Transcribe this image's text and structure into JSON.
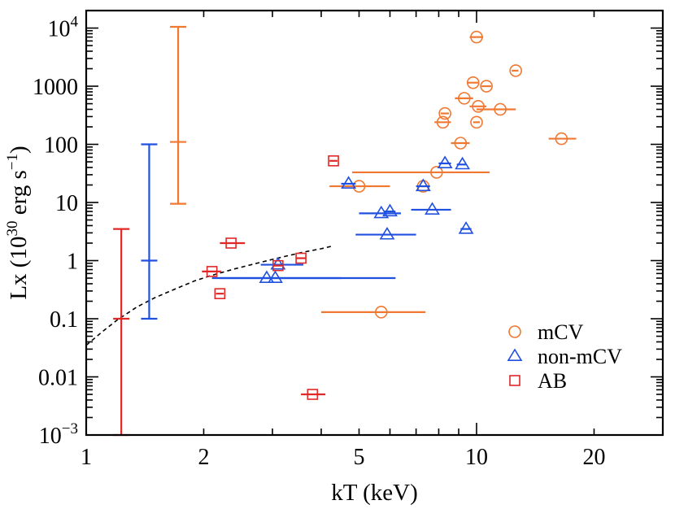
{
  "chart_data": {
    "type": "scatter",
    "title": "",
    "xlabel": "kT (keV)",
    "ylabel_parts": [
      "Lx (10",
      "30",
      " erg s",
      "−1",
      ")"
    ],
    "xscale": "log",
    "yscale": "log",
    "xlim": [
      1,
      30
    ],
    "ylim": [
      0.001,
      20000
    ],
    "x_ticks": [
      {
        "value": 1,
        "label": "1"
      },
      {
        "value": 2,
        "label": "2"
      },
      {
        "value": 5,
        "label": "5"
      },
      {
        "value": 10,
        "label": "10"
      },
      {
        "value": 20,
        "label": "20"
      }
    ],
    "y_ticks": [
      {
        "value": 0.001,
        "base": "10",
        "exp": "−3"
      },
      {
        "value": 0.01,
        "label": "0.01"
      },
      {
        "value": 0.1,
        "label": "0.1"
      },
      {
        "value": 1,
        "label": "1"
      },
      {
        "value": 10,
        "label": "10"
      },
      {
        "value": 100,
        "label": "100"
      },
      {
        "value": 1000,
        "label": "1000"
      },
      {
        "value": 10000,
        "base": "10",
        "exp": "4"
      }
    ],
    "colors": {
      "mCV": "#f07830",
      "non-mCV": "#2050e0",
      "AB": "#e02828"
    },
    "legend": {
      "position": "lower-right",
      "entries": [
        {
          "name": "mCV",
          "marker": "circle"
        },
        {
          "name": "non-mCV",
          "marker": "triangle"
        },
        {
          "name": "AB",
          "marker": "square"
        }
      ]
    },
    "series": [
      {
        "name": "mCV",
        "marker": "circle",
        "points": [
          {
            "x": 10.0,
            "y": 7000,
            "xerr": [
              9.6,
              10.4
            ]
          },
          {
            "x": 12.6,
            "y": 1850,
            "xerr": [
              12.3,
              12.8
            ]
          },
          {
            "x": 9.8,
            "y": 1150,
            "xerr": [
              9.5,
              10.1
            ]
          },
          {
            "x": 10.6,
            "y": 1000,
            "xerr": [
              10.3,
              10.9
            ]
          },
          {
            "x": 9.3,
            "y": 620,
            "xerr": [
              8.8,
              9.8
            ]
          },
          {
            "x": 10.1,
            "y": 450,
            "xerr": [
              9.6,
              10.6
            ]
          },
          {
            "x": 11.5,
            "y": 400,
            "xerr": [
              10.0,
              12.6
            ]
          },
          {
            "x": 8.3,
            "y": 340,
            "xerr": [
              8.1,
              8.5
            ]
          },
          {
            "x": 8.2,
            "y": 240,
            "xerr": [
              7.8,
              8.6
            ]
          },
          {
            "x": 10.0,
            "y": 240,
            "xerr": [
              9.8,
              10.2
            ]
          },
          {
            "x": 16.5,
            "y": 125,
            "xerr": [
              15.3,
              18.0
            ]
          },
          {
            "x": 9.1,
            "y": 105,
            "xerr": [
              8.6,
              9.6
            ]
          },
          {
            "x": 7.9,
            "y": 33,
            "xerr": [
              4.8,
              10.8
            ]
          },
          {
            "x": 5.0,
            "y": 19,
            "xerr": [
              4.2,
              6.0
            ]
          },
          {
            "x": 7.3,
            "y": 19,
            "xerr": [
              7.1,
              7.5
            ]
          },
          {
            "x": 5.7,
            "y": 0.13,
            "xerr": [
              4.0,
              7.4
            ]
          }
        ],
        "yerr_bar": {
          "x": 1.72,
          "y": 110,
          "low": 9.5,
          "high": 10500
        }
      },
      {
        "name": "non-mCV",
        "marker": "triangle",
        "points": [
          {
            "x": 8.3,
            "y": 47,
            "xerr": [
              8.0,
              8.6
            ]
          },
          {
            "x": 9.2,
            "y": 45,
            "xerr": [
              8.9,
              9.4
            ]
          },
          {
            "x": 4.7,
            "y": 21,
            "xerr": [
              4.5,
              4.9
            ]
          },
          {
            "x": 7.3,
            "y": 19,
            "xerr": [
              7.0,
              7.6
            ]
          },
          {
            "x": 7.7,
            "y": 7.5,
            "xerr": [
              6.8,
              8.6
            ]
          },
          {
            "x": 6.0,
            "y": 7,
            "xerr": [
              5.8,
              6.2
            ]
          },
          {
            "x": 5.7,
            "y": 6.5,
            "xerr": [
              5.0,
              6.4
            ]
          },
          {
            "x": 5.9,
            "y": 2.8,
            "xerr": [
              4.9,
              7.0
            ]
          },
          {
            "x": 9.4,
            "y": 3.5,
            "xerr": [
              9.1,
              9.7
            ]
          },
          {
            "x": 3.1,
            "y": 0.85,
            "xerr": [
              2.8,
              3.6
            ]
          },
          {
            "x": 2.9,
            "y": 0.5,
            "xerr": [
              2.1,
              4.5
            ]
          },
          {
            "x": 3.05,
            "y": 0.5,
            "xerr": [
              2.2,
              6.2
            ]
          }
        ],
        "yerr_bar": {
          "x": 1.45,
          "y": 1.0,
          "low": 0.1,
          "high": 100
        }
      },
      {
        "name": "AB",
        "marker": "square",
        "points": [
          {
            "x": 4.3,
            "y": 52,
            "xerr": [
              4.2,
              4.4
            ]
          },
          {
            "x": 2.35,
            "y": 2.0,
            "xerr": [
              2.2,
              2.55
            ]
          },
          {
            "x": 3.55,
            "y": 1.1,
            "xerr": [
              3.45,
              3.65
            ]
          },
          {
            "x": 3.1,
            "y": 0.82,
            "xerr": [
              3.0,
              3.2
            ]
          },
          {
            "x": 2.1,
            "y": 0.65,
            "xerr": [
              1.98,
              2.22
            ]
          },
          {
            "x": 2.2,
            "y": 0.27,
            "xerr": [
              2.15,
              2.25
            ]
          },
          {
            "x": 3.8,
            "y": 0.005,
            "xerr": [
              3.55,
              4.1
            ]
          }
        ],
        "yerr_bar": {
          "x": 1.23,
          "y": 0.1,
          "low": 0.001,
          "high": 3.5
        }
      }
    ],
    "model_curve": {
      "style": "dashed",
      "x": [
        1.0,
        1.1,
        1.2,
        1.35,
        1.5,
        1.7,
        1.9,
        2.1,
        2.4,
        2.7,
        3.0,
        3.3,
        3.6,
        4.0,
        4.3
      ],
      "y": [
        0.035,
        0.06,
        0.095,
        0.16,
        0.23,
        0.33,
        0.45,
        0.56,
        0.72,
        0.88,
        1.05,
        1.22,
        1.4,
        1.6,
        1.8
      ]
    }
  }
}
